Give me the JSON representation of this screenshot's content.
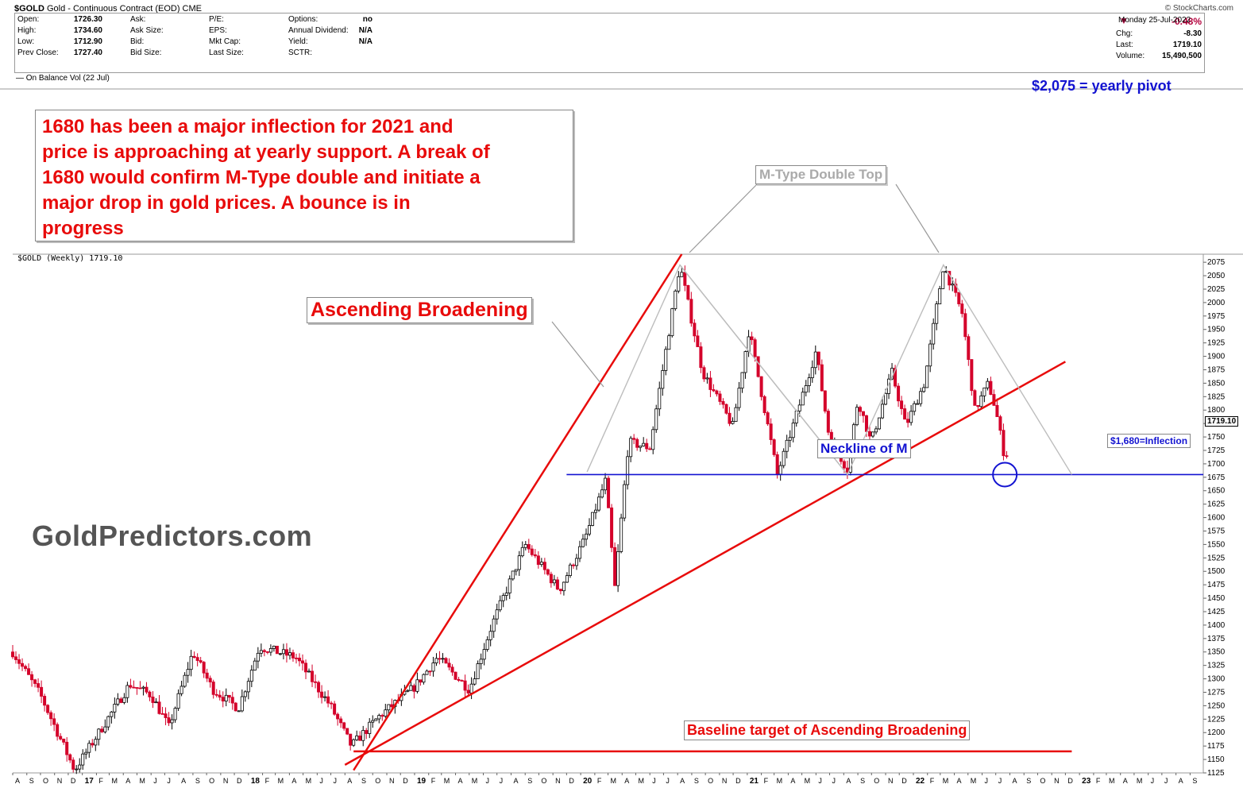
{
  "header": {
    "symbol": "$GOLD",
    "description": "Gold - Continuous Contract (EOD)",
    "exchange": "CME",
    "brand": "© StockCharts.com",
    "date": "Monday   25-Jul-2022",
    "stats": {
      "open_label": "Open:",
      "open": "1726.30",
      "high_label": "High:",
      "high": "1734.60",
      "low_label": "Low:",
      "low": "1712.90",
      "prevclose_label": "Prev Close:",
      "prevclose": "1727.40",
      "ask_label": "Ask:",
      "asksize_label": "Ask Size:",
      "bid_label": "Bid:",
      "bidsize_label": "Bid Size:",
      "pe_label": "P/E:",
      "eps_label": "EPS:",
      "mktcap_label": "Mkt Cap:",
      "lastsize_label": "Last Size:",
      "options_label": "Options:",
      "options": "no",
      "anndiv_label": "Annual Dividend:",
      "anndiv": "N/A",
      "yield_label": "Yield:",
      "yield": "N/A",
      "sctr_label": "SCTR:",
      "pct": "-0.48%",
      "chg_label": "Chg:",
      "chg": "-8.30",
      "last_label": "Last:",
      "last": "1719.10",
      "volume_label": "Volume:",
      "volume": "15,490,500"
    },
    "indicator": "On Balance Vol (22 Jul)",
    "panel_label": "$GOLD (Weekly) 1719.10"
  },
  "annotations": {
    "pivot": "$2,075 = yearly pivot",
    "callout": "1680 has been a major inflection for 2021 and\nprice is approaching at yearly support. A break of\n1680 would confirm M-Type double and initiate a\nmajor drop in gold prices. A bounce is in\nprogress",
    "ascending": "Ascending Broadening",
    "mtop": "M-Type Double Top",
    "neckline": "Neckline of M",
    "baseline": "Baseline target of Ascending Broadening",
    "inflection": "$1,680=Inflection",
    "watermark": "GoldPredictors.com",
    "last_price": "1719.10"
  },
  "colors": {
    "up": "#000000",
    "down": "#d4002a",
    "trend": "#e80b0b",
    "blue": "#1313d1",
    "gray": "#bdbdbd"
  },
  "chart_data": {
    "type": "candlestick",
    "title": "$GOLD (Weekly) 1719.10",
    "frequency": "weekly",
    "x_range": [
      "2016-08",
      "2023-09"
    ],
    "ylim": [
      1125,
      2090
    ],
    "y_ticks": [
      1125,
      1150,
      1175,
      1200,
      1225,
      1250,
      1275,
      1300,
      1325,
      1350,
      1375,
      1400,
      1425,
      1450,
      1475,
      1500,
      1525,
      1550,
      1575,
      1600,
      1625,
      1650,
      1675,
      1700,
      1725,
      1750,
      1775,
      1800,
      1825,
      1850,
      1875,
      1900,
      1925,
      1950,
      1975,
      2000,
      2025,
      2050,
      2075
    ],
    "x_tick_labels": [
      "A",
      "S",
      "O",
      "N",
      "D",
      "17",
      "F",
      "M",
      "A",
      "M",
      "J",
      "J",
      "A",
      "S",
      "O",
      "N",
      "D",
      "18",
      "F",
      "M",
      "A",
      "M",
      "J",
      "J",
      "A",
      "S",
      "O",
      "N",
      "D",
      "19",
      "F",
      "M",
      "A",
      "M",
      "J",
      "J",
      "A",
      "S",
      "O",
      "N",
      "D",
      "20",
      "F",
      "M",
      "A",
      "M",
      "J",
      "J",
      "A",
      "S",
      "O",
      "N",
      "D",
      "21",
      "F",
      "M",
      "A",
      "M",
      "J",
      "J",
      "A",
      "S",
      "O",
      "N",
      "D",
      "22",
      "F",
      "M",
      "A",
      "M",
      "J",
      "J",
      "A",
      "S",
      "O",
      "N",
      "D",
      "23",
      "F",
      "M",
      "A",
      "M",
      "J",
      "J",
      "A",
      "S"
    ],
    "price_path": [
      [
        "2016-08-01",
        1350
      ],
      [
        "2016-10-01",
        1270
      ],
      [
        "2016-12-15",
        1130
      ],
      [
        "2017-03-01",
        1230
      ],
      [
        "2017-04-15",
        1290
      ],
      [
        "2017-06-01",
        1270
      ],
      [
        "2017-07-10",
        1210
      ],
      [
        "2017-09-01",
        1350
      ],
      [
        "2017-10-15",
        1280
      ],
      [
        "2017-12-10",
        1245
      ],
      [
        "2018-01-25",
        1360
      ],
      [
        "2018-04-15",
        1340
      ],
      [
        "2018-06-30",
        1250
      ],
      [
        "2018-08-15",
        1175
      ],
      [
        "2018-10-15",
        1230
      ],
      [
        "2019-01-01",
        1285
      ],
      [
        "2019-02-20",
        1340
      ],
      [
        "2019-05-01",
        1280
      ],
      [
        "2019-06-20",
        1400
      ],
      [
        "2019-09-01",
        1550
      ],
      [
        "2019-11-15",
        1465
      ],
      [
        "2020-01-10",
        1560
      ],
      [
        "2020-02-25",
        1670
      ],
      [
        "2020-03-16",
        1470
      ],
      [
        "2020-04-15",
        1740
      ],
      [
        "2020-06-01",
        1730
      ],
      [
        "2020-08-06",
        2070
      ],
      [
        "2020-09-25",
        1870
      ],
      [
        "2020-11-30",
        1770
      ],
      [
        "2021-01-05",
        1950
      ],
      [
        "2021-03-08",
        1680
      ],
      [
        "2021-04-15",
        1780
      ],
      [
        "2021-06-01",
        1910
      ],
      [
        "2021-06-30",
        1750
      ],
      [
        "2021-08-09",
        1690
      ],
      [
        "2021-09-01",
        1820
      ],
      [
        "2021-09-30",
        1740
      ],
      [
        "2021-11-15",
        1870
      ],
      [
        "2021-12-15",
        1770
      ],
      [
        "2022-01-25",
        1850
      ],
      [
        "2022-03-08",
        2070
      ],
      [
        "2022-04-18",
        1980
      ],
      [
        "2022-05-16",
        1800
      ],
      [
        "2022-06-15",
        1850
      ],
      [
        "2022-07-01",
        1800
      ],
      [
        "2022-07-21",
        1710
      ],
      [
        "2022-07-25",
        1719.1
      ]
    ],
    "overlays": [
      {
        "name": "Ascending Broadening upper trendline",
        "color": "#e80b0b",
        "points": [
          [
            "2018-08-20",
            1130
          ],
          [
            "2020-08-10",
            2090
          ]
        ]
      },
      {
        "name": "Ascending Broadening lower trendline",
        "color": "#e80b0b",
        "points": [
          [
            "2018-08-01",
            1140
          ],
          [
            "2022-12-01",
            1890
          ]
        ]
      },
      {
        "name": "Baseline target",
        "color": "#e80b0b",
        "points": [
          [
            "2018-08-20",
            1165
          ],
          [
            "2022-12-15",
            1165
          ]
        ]
      },
      {
        "name": "Neckline",
        "color": "#1313d1",
        "points": [
          [
            "2019-12-01",
            1680
          ],
          [
            "2023-09-30",
            1680
          ]
        ]
      },
      {
        "name": "M-Type double top",
        "color": "#bdbdbd",
        "points": [
          [
            "2020-01-15",
            1685
          ],
          [
            "2020-08-06",
            2070
          ],
          [
            "2021-08-09",
            1680
          ],
          [
            "2022-03-08",
            2070
          ],
          [
            "2022-12-15",
            1680
          ]
        ]
      },
      {
        "name": "Left shoulder line",
        "color": "#bdbdbd",
        "points": [
          [
            "2020-08-06",
            2070
          ],
          [
            "2021-08-09",
            1680
          ]
        ]
      }
    ],
    "horizontal_levels": [
      {
        "label": "$1,680=Inflection",
        "value": 1680
      },
      {
        "label": "$2,075 = yearly pivot",
        "value": 2075
      }
    ],
    "marker": {
      "type": "circle",
      "date": "2022-07-21",
      "value": 1680
    }
  }
}
